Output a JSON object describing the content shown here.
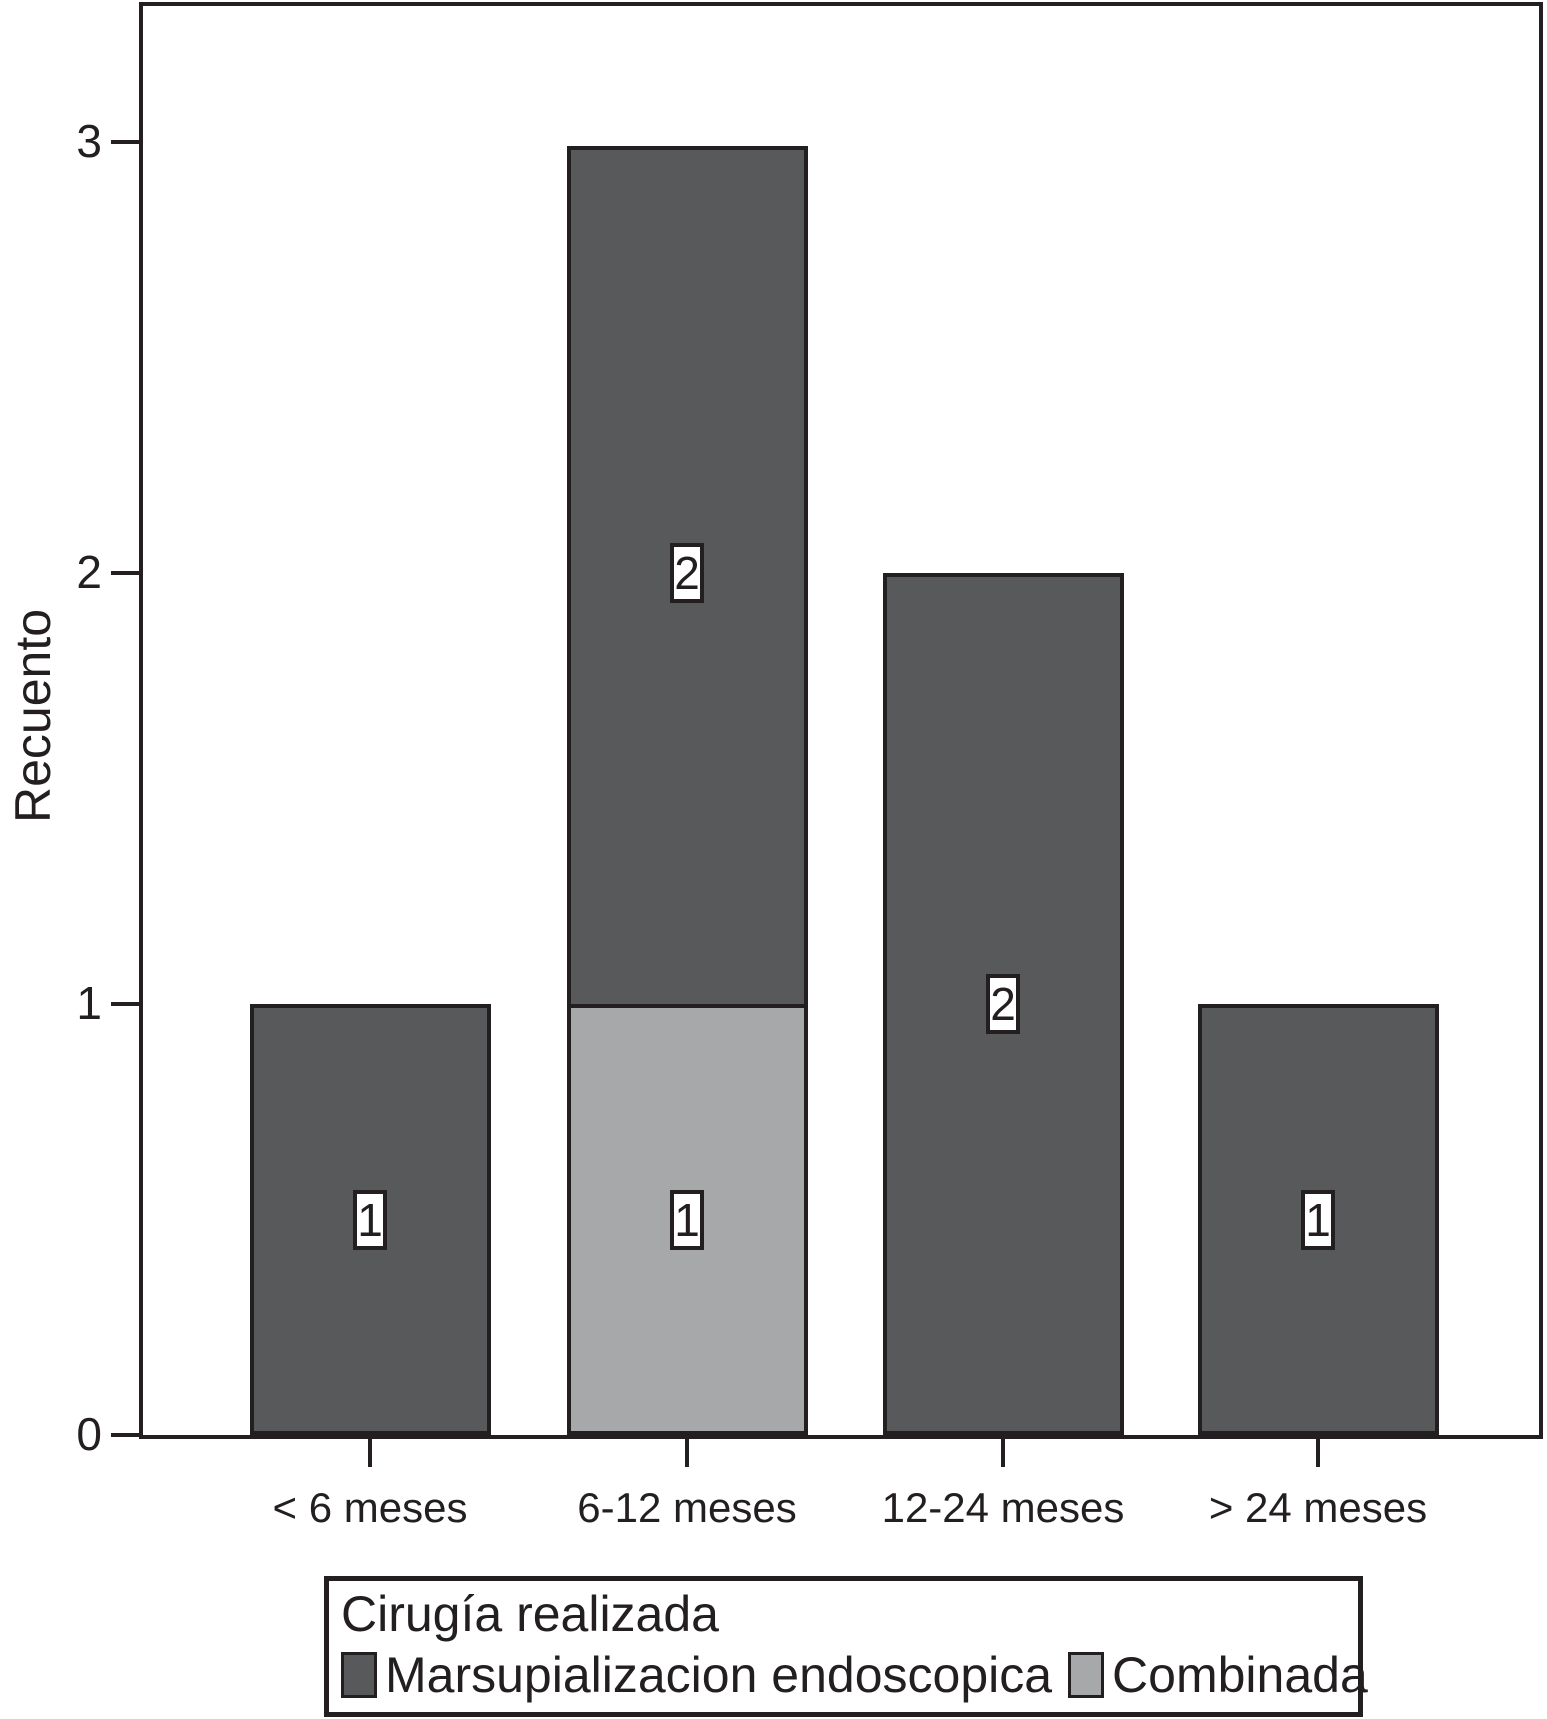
{
  "figure": {
    "background_color": "#FFFFFF",
    "ink_color": "#231F20"
  },
  "chart_data": {
    "type": "bar",
    "stacked": true,
    "title": "",
    "xlabel": "",
    "ylabel": "Recuento",
    "categories": [
      "< 6 meses",
      "6-12 meses",
      "12-24 meses",
      "> 24 meses"
    ],
    "series": [
      {
        "name": "Marsupializacion endoscopica",
        "color": "#58595B",
        "values": [
          1,
          2,
          2,
          1
        ]
      },
      {
        "name": "Combinada",
        "color": "#A7A8AA",
        "values": [
          0,
          1,
          0,
          0
        ]
      }
    ],
    "stack_order": [
      "Combinada",
      "Marsupializacion endoscopica"
    ],
    "totals": [
      1,
      3,
      2,
      1
    ],
    "segment_labels_shown": true,
    "yticks": [
      "0",
      "1",
      "2",
      "3"
    ],
    "ylim": [
      0,
      3.33
    ],
    "grid": false,
    "legend": {
      "title": "Cirugía realizada",
      "position": "bottom",
      "entries": [
        "Marsupializacion endoscopica",
        "Combinada"
      ]
    }
  }
}
